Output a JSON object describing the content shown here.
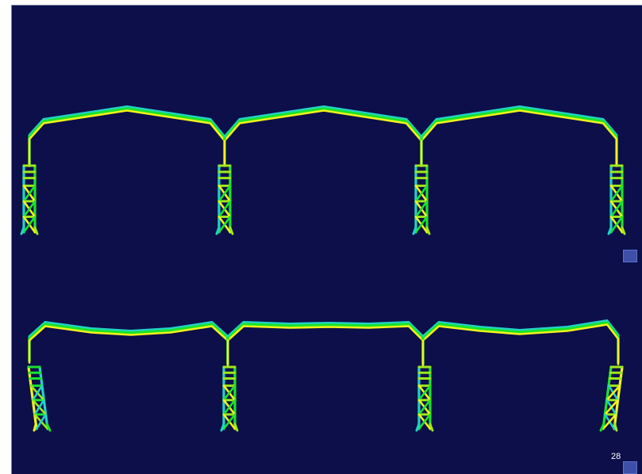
{
  "slide": {
    "page_number": "28",
    "background_color": "#0c0f4a"
  },
  "colors": {
    "cyan": "#22d2c8",
    "green": "#1be22b",
    "yellow": "#f2f21a",
    "lime": "#9fe81c"
  },
  "views": [
    {
      "name": "undeformed-frame-view",
      "state": "original"
    },
    {
      "name": "deformed-frame-view",
      "state": "deformed"
    }
  ],
  "orientation_icon": "axis-triad-icon"
}
